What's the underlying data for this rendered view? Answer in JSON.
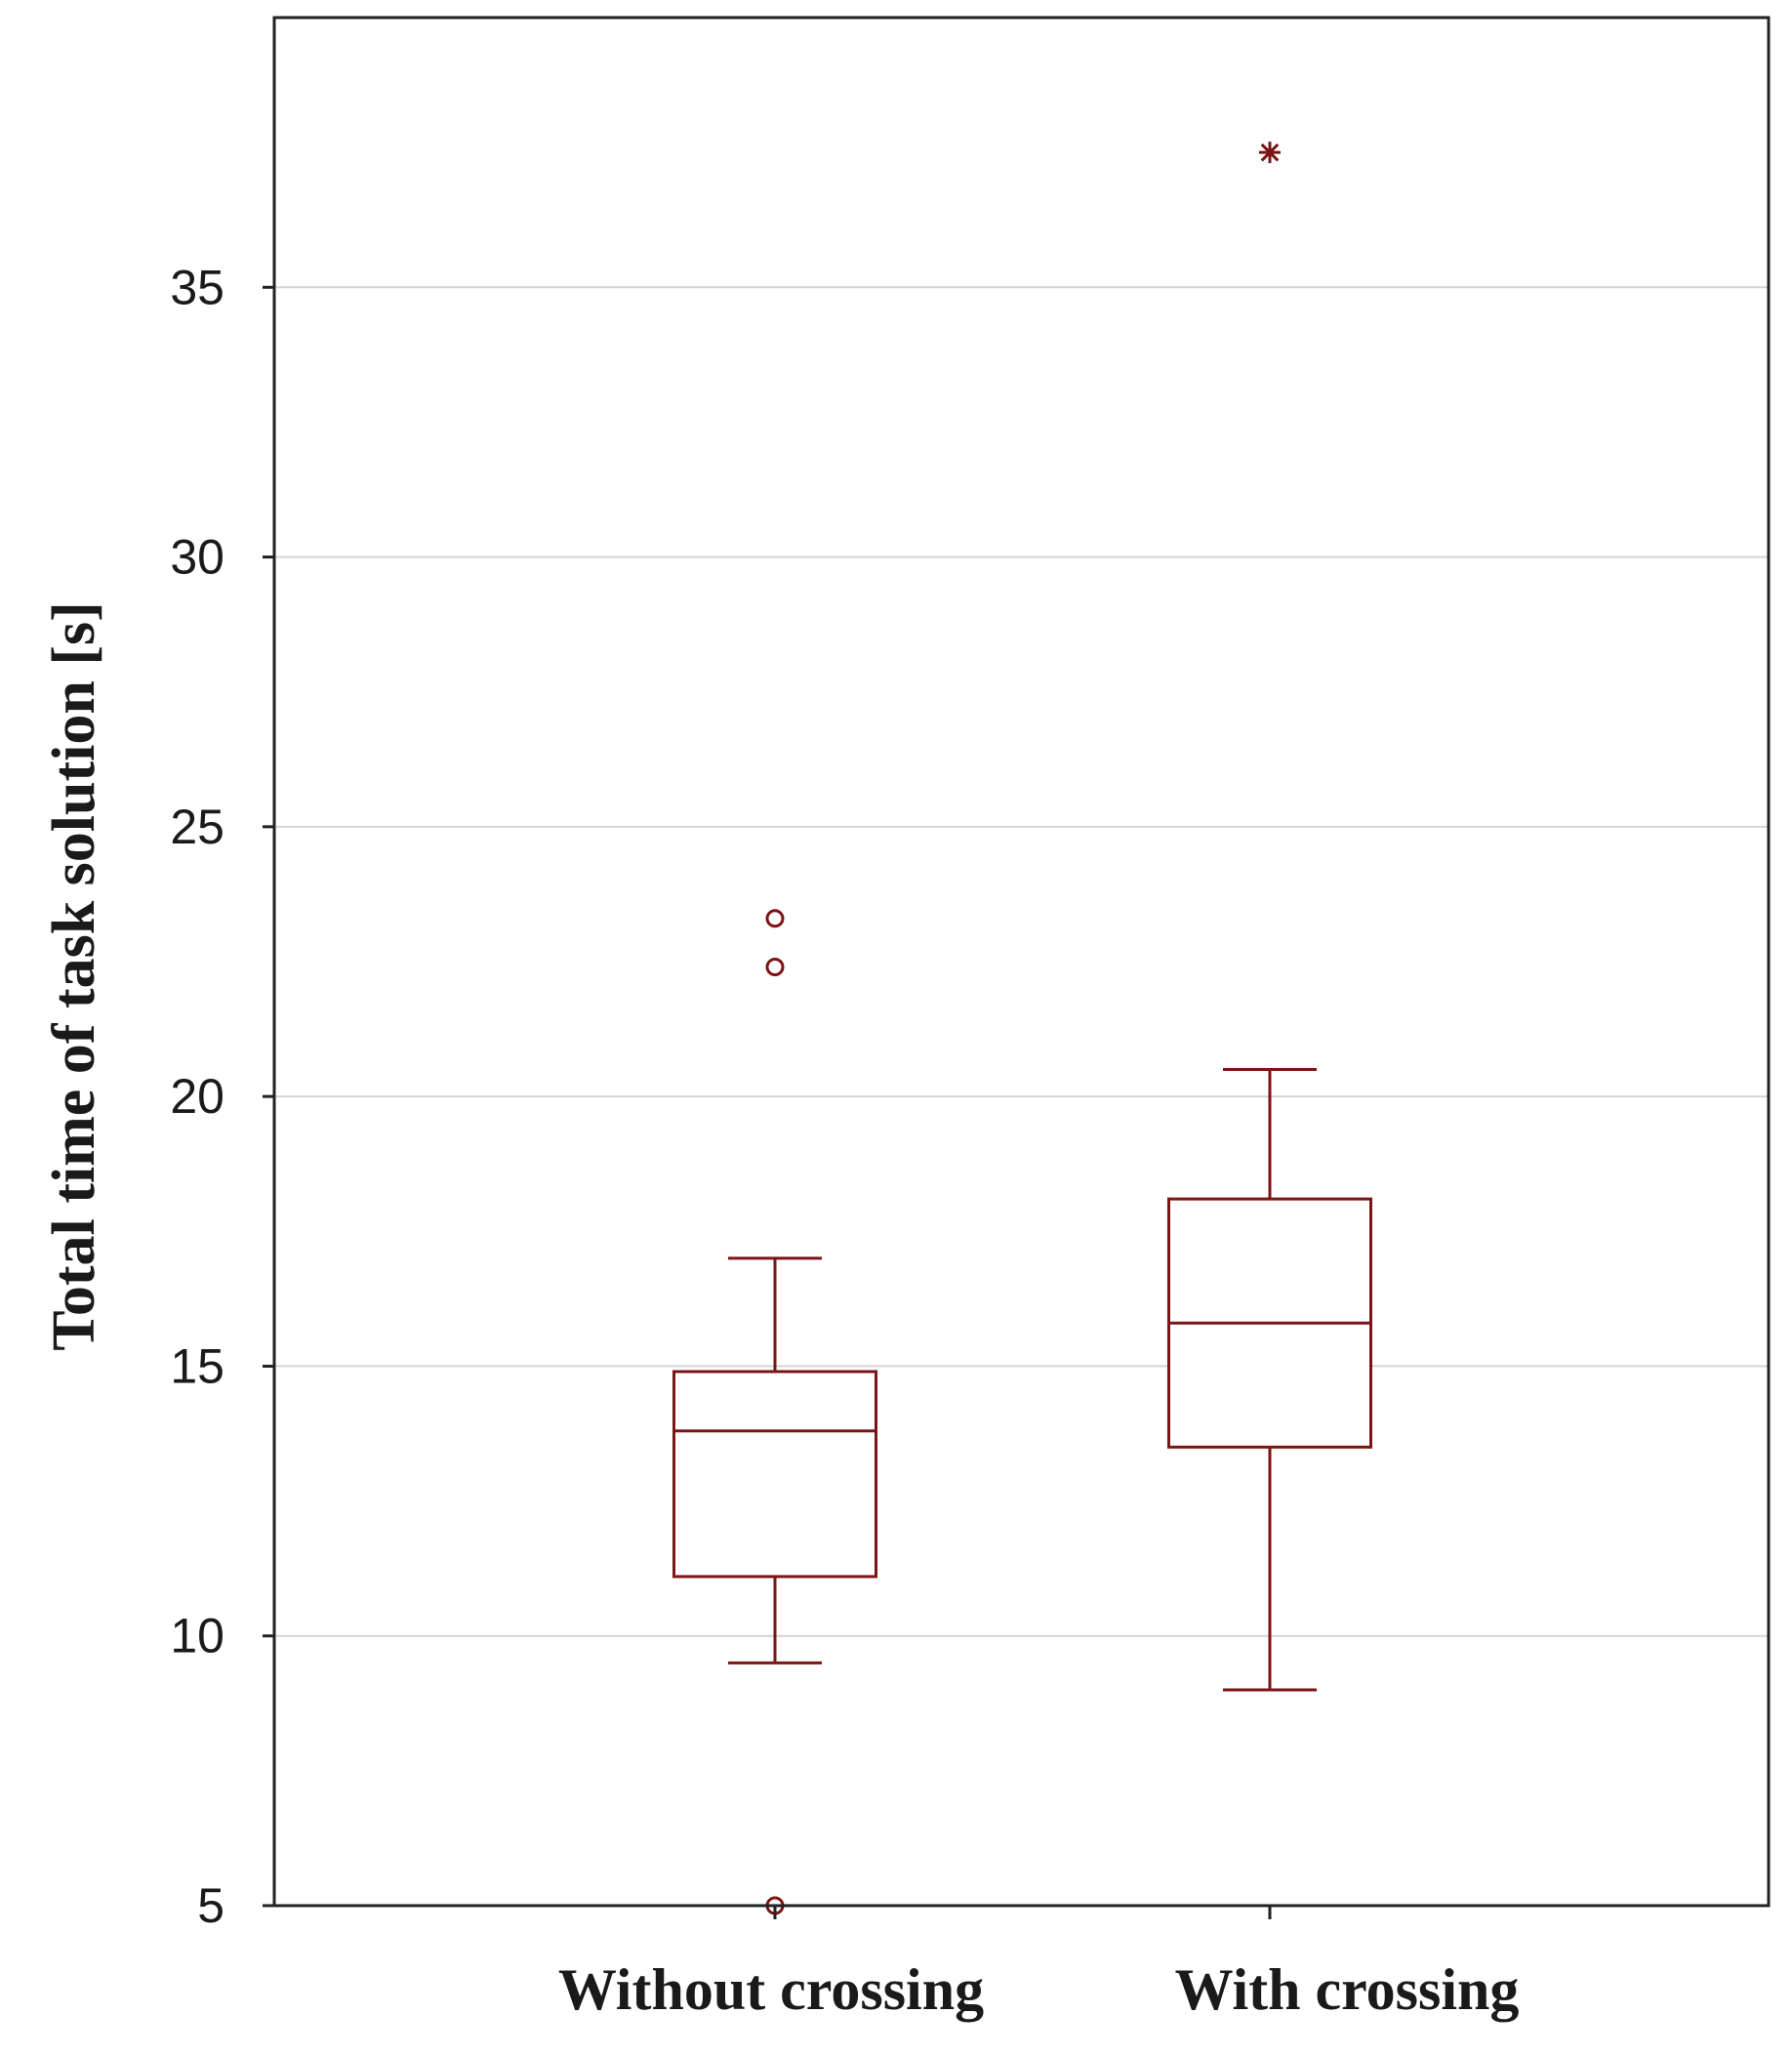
{
  "chart_data": {
    "type": "box",
    "title": "",
    "xlabel": "",
    "ylabel": "Total time of task solution [s]",
    "ylim": [
      5,
      40
    ],
    "yticks": [
      5,
      10,
      15,
      20,
      25,
      30,
      35
    ],
    "grid": true,
    "color": "#7b1414",
    "categories": [
      "Without  crossing",
      "With crossing"
    ],
    "boxes": [
      {
        "name": "Without  crossing",
        "whisker_low": 9.5,
        "q1": 11.1,
        "median": 13.8,
        "q3": 14.9,
        "whisker_high": 17.0,
        "outliers": [
          23.3,
          22.4,
          5.0
        ],
        "extremes": []
      },
      {
        "name": "With crossing",
        "whisker_low": 9.0,
        "q1": 13.5,
        "median": 15.8,
        "q3": 18.1,
        "whisker_high": 20.5,
        "outliers": [],
        "extremes": [
          37.5
        ]
      }
    ]
  }
}
